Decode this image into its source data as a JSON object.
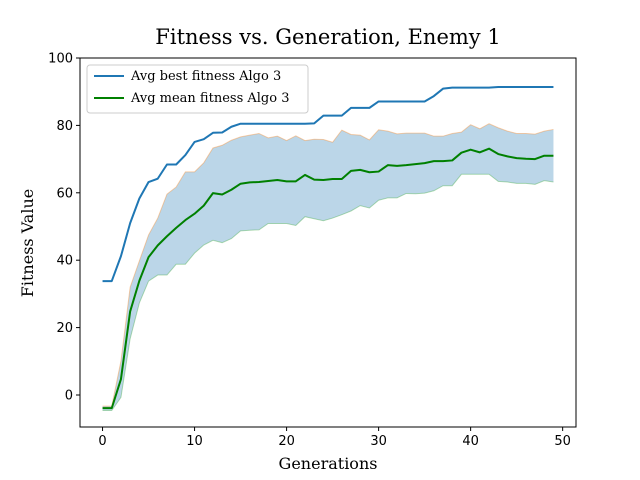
{
  "chart_data": {
    "type": "line",
    "title": "Fitness vs. Generation, Enemy 1",
    "xlabel": "Generations",
    "ylabel": "Fitness Value",
    "xlim": [
      -2.45,
      51.45
    ],
    "ylim": [
      -9.5,
      100
    ],
    "xticks": [
      0,
      10,
      20,
      30,
      40,
      50
    ],
    "yticks": [
      0,
      20,
      40,
      60,
      80,
      100
    ],
    "grid": false,
    "legend_position": "top-left",
    "x": [
      0,
      1,
      2,
      3,
      4,
      5,
      6,
      7,
      8,
      9,
      10,
      11,
      12,
      13,
      14,
      15,
      16,
      17,
      18,
      19,
      20,
      21,
      22,
      23,
      24,
      25,
      26,
      27,
      28,
      29,
      30,
      31,
      32,
      33,
      34,
      35,
      36,
      37,
      38,
      39,
      40,
      41,
      42,
      43,
      44,
      45,
      46,
      47,
      48,
      49
    ],
    "series": [
      {
        "name": "Avg best fitness Algo 3",
        "color": "#1f77b4",
        "values": [
          33.8,
          33.8,
          41.2,
          51.0,
          58.3,
          63.2,
          64.2,
          68.4,
          68.4,
          71.2,
          75.1,
          75.9,
          77.8,
          77.9,
          79.6,
          80.5,
          80.5,
          80.5,
          80.5,
          80.5,
          80.5,
          80.5,
          80.5,
          80.6,
          82.9,
          82.9,
          82.9,
          85.2,
          85.2,
          85.2,
          87.1,
          87.1,
          87.1,
          87.1,
          87.1,
          87.1,
          88.7,
          90.9,
          91.2,
          91.2,
          91.2,
          91.2,
          91.2,
          91.4,
          91.4,
          91.4,
          91.4,
          91.4,
          91.4,
          91.4
        ]
      },
      {
        "name": "Avg mean fitness Algo 3",
        "color": "#008000",
        "values": [
          -3.9,
          -3.9,
          4.7,
          24.8,
          33.9,
          40.9,
          44.4,
          47.1,
          49.6,
          51.9,
          53.8,
          56.2,
          59.9,
          59.5,
          60.9,
          62.7,
          63.1,
          63.2,
          63.5,
          63.8,
          63.4,
          63.4,
          65.3,
          63.9,
          63.8,
          64.1,
          64.1,
          66.5,
          66.8,
          66.1,
          66.3,
          68.2,
          68.0,
          68.2,
          68.5,
          68.8,
          69.4,
          69.4,
          69.6,
          71.9,
          72.8,
          72.0,
          73.1,
          71.5,
          70.8,
          70.3,
          70.1,
          70.0,
          71.0,
          71.0
        ]
      }
    ],
    "band": {
      "color": "#1f77b4",
      "opacity": 0.3,
      "upper": [
        -3.3,
        -3.3,
        10.1,
        32.0,
        39.8,
        47.5,
        52.5,
        59.6,
        61.7,
        66.2,
        66.2,
        68.9,
        73.3,
        74.1,
        75.6,
        76.6,
        77.1,
        77.6,
        76.3,
        76.8,
        75.5,
        76.9,
        75.5,
        75.9,
        75.8,
        75.0,
        78.6,
        77.3,
        77.1,
        75.7,
        78.7,
        78.3,
        77.5,
        77.7,
        77.7,
        77.7,
        76.8,
        76.8,
        77.6,
        78.0,
        80.2,
        79.0,
        80.5,
        79.3,
        78.3,
        77.6,
        77.6,
        77.4,
        78.3,
        78.8
      ],
      "lower": [
        -4.6,
        -4.6,
        -0.7,
        16.7,
        27.3,
        33.8,
        35.6,
        35.6,
        38.8,
        38.8,
        42.1,
        44.5,
        45.9,
        45.2,
        46.4,
        48.7,
        48.9,
        49.0,
        50.9,
        50.9,
        50.9,
        50.3,
        52.9,
        52.3,
        51.7,
        52.5,
        53.5,
        54.6,
        56.2,
        55.5,
        57.8,
        58.5,
        58.5,
        59.8,
        59.7,
        59.9,
        60.6,
        62.1,
        62.1,
        65.5,
        65.5,
        65.5,
        65.5,
        63.4,
        63.2,
        62.8,
        62.8,
        62.5,
        63.6,
        63.2
      ]
    }
  }
}
